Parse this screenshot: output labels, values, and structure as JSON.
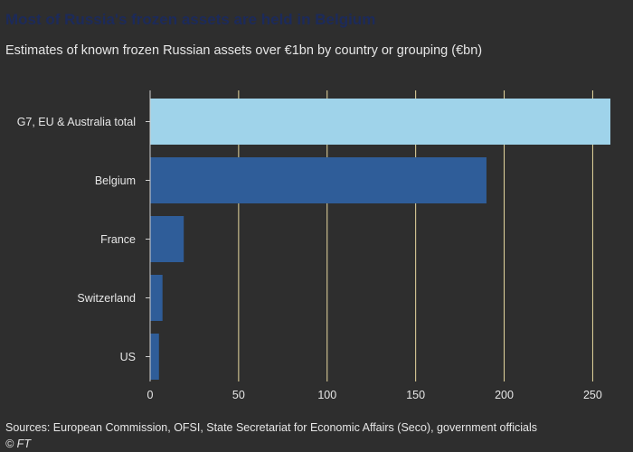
{
  "header": {
    "title": "Most of Russia's frozen assets are held in Belgium",
    "subtitle": "Estimates of known frozen Russian assets over €1bn by country or grouping (€bn)"
  },
  "footer": {
    "source": "Sources: European Commission, OFSI, State Secretariat for Economic Affairs (Seco), government officials",
    "credit": "© FT"
  },
  "colors": {
    "highlight_bar": "#9fd3ea",
    "bar": "#2f5d99",
    "gridline": "#e8d9a0",
    "axis_text": "#e6e6e6",
    "background": "#2e2e2e"
  },
  "chart_data": {
    "type": "bar",
    "orientation": "horizontal",
    "categories": [
      "G7, EU & Australia total",
      "Belgium",
      "France",
      "Switzerland",
      "US"
    ],
    "values": [
      260,
      190,
      19,
      7,
      5
    ],
    "xlim": [
      0,
      260
    ],
    "xticks": [
      0,
      50,
      100,
      150,
      200,
      250
    ],
    "grid": "vertical",
    "legend": "none"
  }
}
